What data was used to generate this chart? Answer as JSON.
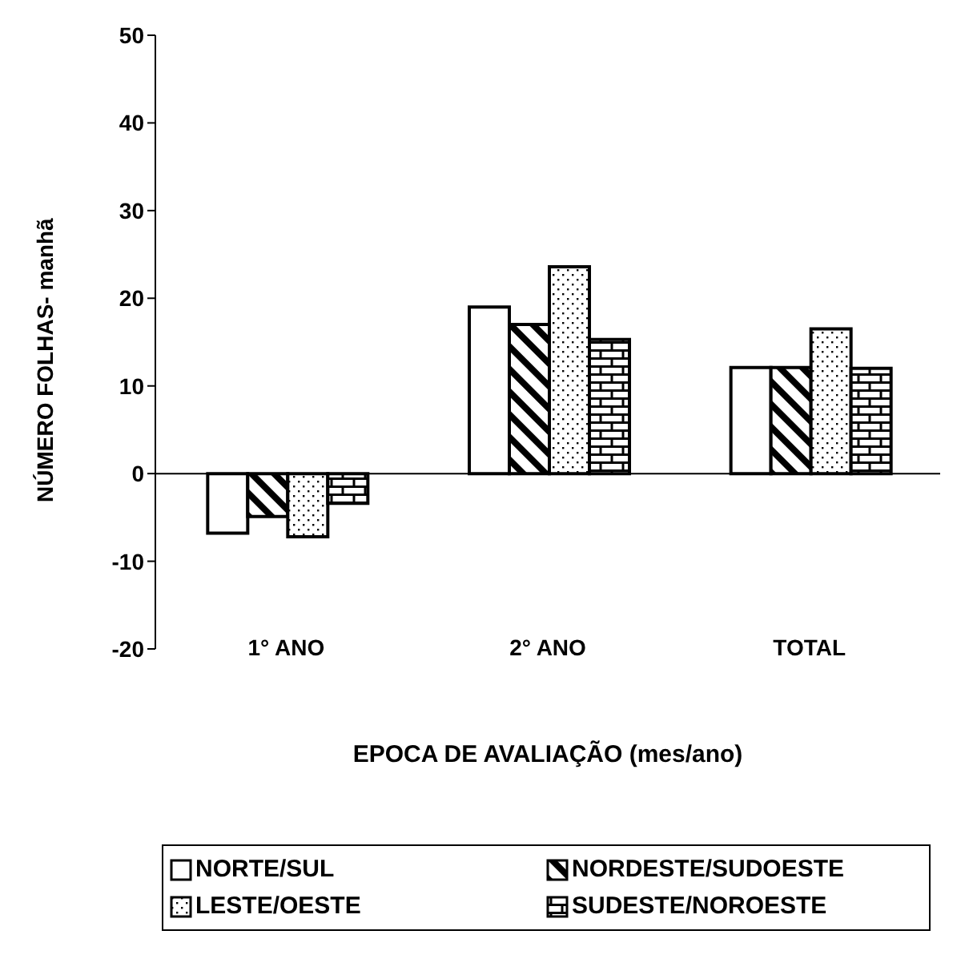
{
  "chart_data": {
    "type": "bar",
    "xlabel": "EPOCA DE AVALIAÇÃO (mes/ano)",
    "ylabel": "NÚMERO FOLHAS- manhã",
    "categories": [
      "1° ANO",
      "2° ANO",
      "TOTAL"
    ],
    "series": [
      {
        "name": "NORTE/SUL",
        "color": "#ffffff",
        "values": [
          -6.8,
          19.0,
          12.1
        ]
      },
      {
        "name": "NORDESTE/SUDOESTE",
        "color": "#000000",
        "values": [
          -4.9,
          17.0,
          12.1
        ]
      },
      {
        "name": "LESTE/OESTE",
        "color": "#000000",
        "values": [
          -7.2,
          23.6,
          16.5
        ]
      },
      {
        "name": "SUDESTE/NOROESTE",
        "color": "#000000",
        "values": [
          -3.4,
          15.3,
          12.0
        ]
      }
    ],
    "ylim": [
      -20,
      50
    ],
    "yticks": [
      -20,
      -10,
      0,
      10,
      20,
      30,
      40,
      50
    ],
    "legend": "bottom"
  }
}
